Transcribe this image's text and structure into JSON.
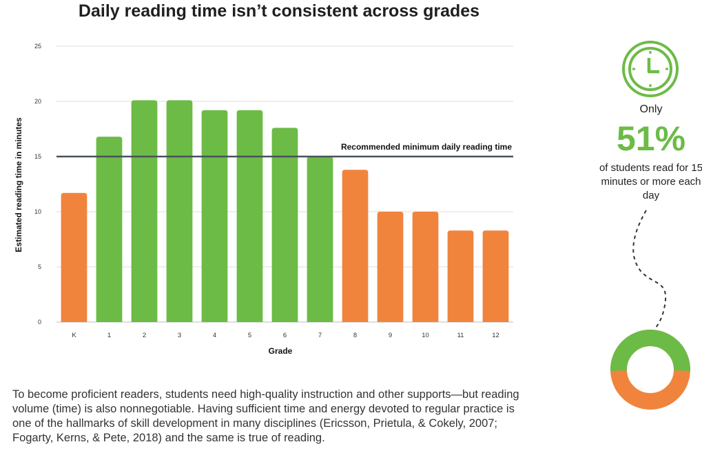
{
  "title": "Daily reading time isn’t consistent across grades",
  "chart_data": {
    "type": "bar",
    "categories": [
      "K",
      "1",
      "2",
      "3",
      "4",
      "5",
      "6",
      "7",
      "8",
      "9",
      "10",
      "11",
      "12"
    ],
    "values": [
      11.7,
      16.8,
      20.1,
      20.1,
      19.2,
      19.2,
      17.6,
      15.0,
      13.8,
      10.0,
      10.0,
      8.3,
      8.3
    ],
    "bar_colors": [
      "#f0843d",
      "#6cbb46",
      "#6cbb46",
      "#6cbb46",
      "#6cbb46",
      "#6cbb46",
      "#6cbb46",
      "#6cbb46",
      "#f0843d",
      "#f0843d",
      "#f0843d",
      "#f0843d",
      "#f0843d"
    ],
    "ylim": [
      0,
      25
    ],
    "yticks": [
      0,
      5,
      10,
      15,
      20,
      25
    ],
    "xlabel": "Grade",
    "ylabel": "Estimated reading time in minutes",
    "grid": true,
    "reference_line": {
      "value": 15,
      "label": "Recommended minimum daily reading time",
      "color": "#4a5158"
    }
  },
  "colors": {
    "green": "#6cbb46",
    "orange": "#f0843d"
  },
  "side_panel": {
    "icon": "clock-icon",
    "only_label": "Only",
    "percent": "51%",
    "percent_value": 0.51,
    "description": "of students read for 15 minutes or more each day"
  },
  "body_text": "To become proficient readers, students need high-quality instruction and other supports—but reading volume (time) is also nonnegotiable. Having sufficient time and energy devoted to regular practice is one of the hallmarks of skill development in many disciplines (Ericsson, Prietula, & Cokely, 2007; Fogarty, Kerns, & Pete, 2018) and the same is true of reading."
}
